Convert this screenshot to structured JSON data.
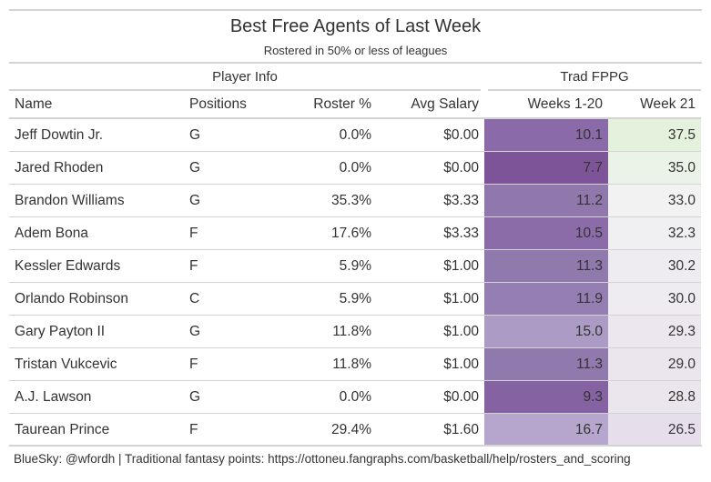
{
  "title": "Best Free Agents of Last Week",
  "subtitle": "Rostered in 50% or less of leagues",
  "spanners": {
    "player_info": "Player Info",
    "trad_fppg": "Trad FPPG"
  },
  "columns": [
    "Name",
    "Positions",
    "Roster %",
    "Avg Salary",
    "Weeks 1-20",
    "Week 21"
  ],
  "rows": [
    {
      "name": "Jeff Dowtin Jr.",
      "pos": "G",
      "roster": "0.0%",
      "salary": "$0.00",
      "w120": "10.1",
      "w21": "37.5"
    },
    {
      "name": "Jared Rhoden",
      "pos": "G",
      "roster": "0.0%",
      "salary": "$0.00",
      "w120": "7.7",
      "w21": "35.0"
    },
    {
      "name": "Brandon Williams",
      "pos": "G",
      "roster": "35.3%",
      "salary": "$3.33",
      "w120": "11.2",
      "w21": "33.0"
    },
    {
      "name": "Adem Bona",
      "pos": "F",
      "roster": "17.6%",
      "salary": "$3.33",
      "w120": "10.5",
      "w21": "32.3"
    },
    {
      "name": "Kessler Edwards",
      "pos": "F",
      "roster": "5.9%",
      "salary": "$1.00",
      "w120": "11.3",
      "w21": "30.2"
    },
    {
      "name": "Orlando Robinson",
      "pos": "C",
      "roster": "5.9%",
      "salary": "$1.00",
      "w120": "11.9",
      "w21": "30.0"
    },
    {
      "name": "Gary Payton II",
      "pos": "G",
      "roster": "11.8%",
      "salary": "$1.00",
      "w120": "15.0",
      "w21": "29.3"
    },
    {
      "name": "Tristan Vukcevic",
      "pos": "F",
      "roster": "11.8%",
      "salary": "$1.00",
      "w120": "11.3",
      "w21": "29.0"
    },
    {
      "name": "A.J. Lawson",
      "pos": "G",
      "roster": "0.0%",
      "salary": "$0.00",
      "w120": "9.3",
      "w21": "28.8"
    },
    {
      "name": "Taurean Prince",
      "pos": "F",
      "roster": "29.4%",
      "salary": "$1.60",
      "w120": "16.7",
      "w21": "26.5"
    }
  ],
  "cell_colors": {
    "w120": [
      "#8a6aa8",
      "#7e5498",
      "#9078ad",
      "#8b6ca9",
      "#9079ad",
      "#957fb2",
      "#ab9bc5",
      "#9079ad",
      "#8562a2",
      "#b6a6cd"
    ],
    "w21": [
      "#e4f2dd",
      "#ebf3e8",
      "#f2f2f2",
      "#f0eff2",
      "#eeebf1",
      "#eeebf1",
      "#ece7ef",
      "#ebe6ee",
      "#ebe6ee",
      "#e6deeb"
    ]
  },
  "footer": "BlueSky: @wfordh | Traditional fantasy points: https://ottoneu.fangraphs.com/basketball/help/rosters_and_scoring"
}
